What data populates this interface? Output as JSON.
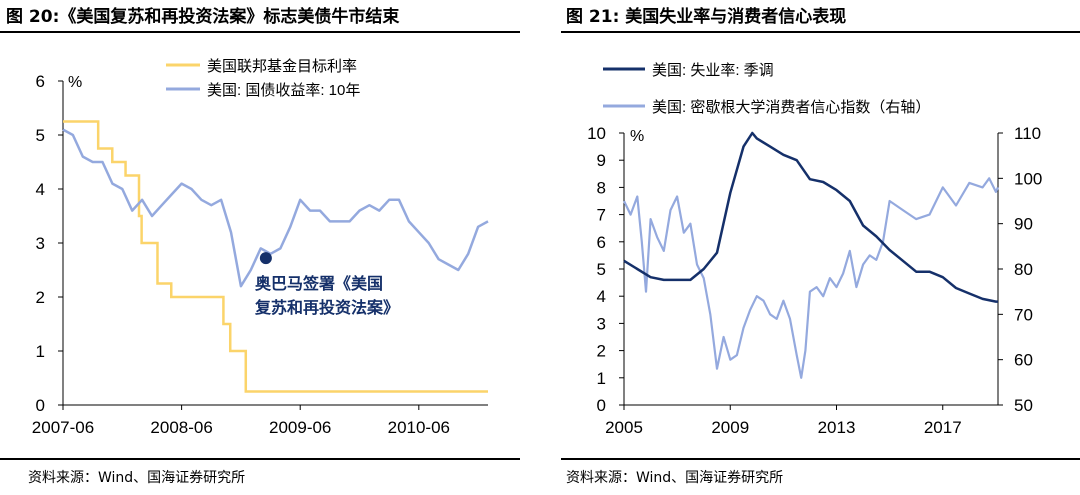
{
  "left_panel": {
    "title": "图 20:《美国复苏和再投资法案》标志美债牛市结束",
    "source": "资料来源：Wind、国海证券研究所"
  },
  "right_panel": {
    "title": "图 21: 美国失业率与消费者信心表现",
    "source": "资料来源：Wind、国海证券研究所"
  },
  "chart_data": [
    {
      "type": "line",
      "title": "",
      "y_unit": "%",
      "ylim": [
        0,
        6
      ],
      "yticks": [
        "0",
        "1",
        "2",
        "3",
        "4",
        "5",
        "6"
      ],
      "xlim": [
        "2007-06",
        "2011-01"
      ],
      "xticks": [
        "2007-06",
        "2008-06",
        "2009-06",
        "2010-06"
      ],
      "legend": [
        "美国联邦基金目标利率",
        "美国: 国债收益率: 10年"
      ],
      "colors": [
        "#FBD46A",
        "#94A9DE"
      ],
      "series": [
        {
          "name": "美国联邦基金目标利率",
          "step": true,
          "x": [
            "2007-06",
            "2007-09-18",
            "2007-10-31",
            "2007-12-11",
            "2008-01-22",
            "2008-01-30",
            "2008-03-18",
            "2008-04-30",
            "2008-10-08",
            "2008-10-29",
            "2008-12-16",
            "2011-01"
          ],
          "values": [
            5.25,
            4.75,
            4.5,
            4.25,
            3.5,
            3.0,
            2.25,
            2.0,
            1.5,
            1.0,
            0.25,
            0.25
          ]
        },
        {
          "name": "美国: 国债收益率: 10年",
          "x": [
            "2007-06",
            "2007-07",
            "2007-08",
            "2007-09",
            "2007-10",
            "2007-11",
            "2007-12",
            "2008-01",
            "2008-02",
            "2008-03",
            "2008-04",
            "2008-05",
            "2008-06",
            "2008-07",
            "2008-08",
            "2008-09",
            "2008-10",
            "2008-11",
            "2008-12",
            "2009-01",
            "2009-02",
            "2009-03",
            "2009-04",
            "2009-05",
            "2009-06",
            "2009-07",
            "2009-08",
            "2009-09",
            "2009-10",
            "2009-11",
            "2009-12",
            "2010-01",
            "2010-02",
            "2010-03",
            "2010-04",
            "2010-05",
            "2010-06",
            "2010-07",
            "2010-08",
            "2010-09",
            "2010-10",
            "2010-11",
            "2010-12",
            "2011-01"
          ],
          "values": [
            5.1,
            5.0,
            4.6,
            4.5,
            4.5,
            4.1,
            4.0,
            3.6,
            3.8,
            3.5,
            3.7,
            3.9,
            4.1,
            4.0,
            3.8,
            3.7,
            3.8,
            3.2,
            2.2,
            2.5,
            2.9,
            2.8,
            2.9,
            3.3,
            3.8,
            3.6,
            3.6,
            3.4,
            3.4,
            3.4,
            3.6,
            3.7,
            3.6,
            3.8,
            3.8,
            3.4,
            3.2,
            3.0,
            2.7,
            2.6,
            2.5,
            2.8,
            3.3,
            3.4
          ]
        }
      ],
      "annotations": [
        {
          "text_lines": [
            "奥巴马签署《美国",
            "复苏和再投资法案》"
          ],
          "x": "2009-02-17",
          "y": 2.72
        }
      ]
    },
    {
      "type": "line",
      "title": "",
      "y_unit": "%",
      "ylim": [
        0,
        10
      ],
      "yticks": [
        "0",
        "1",
        "2",
        "3",
        "4",
        "5",
        "6",
        "7",
        "8",
        "9",
        "10"
      ],
      "y2lim": [
        50,
        110
      ],
      "y2ticks": [
        "50",
        "60",
        "70",
        "80",
        "90",
        "100",
        "110"
      ],
      "xlim": [
        2005,
        2019.08
      ],
      "xticks": [
        "2005",
        "2009",
        "2013",
        "2017"
      ],
      "legend": [
        "美国: 失业率: 季调",
        "美国: 密歇根大学消费者信心指数（右轴）"
      ],
      "colors": [
        "#15306A",
        "#94A9DE"
      ],
      "series": [
        {
          "name": "美国: 失业率: 季调",
          "axis": "left",
          "x": [
            2005.0,
            2005.5,
            2006.0,
            2006.5,
            2007.0,
            2007.5,
            2008.0,
            2008.5,
            2009.0,
            2009.5,
            2009.83,
            2010.0,
            2010.5,
            2011.0,
            2011.5,
            2012.0,
            2012.5,
            2013.0,
            2013.5,
            2014.0,
            2014.5,
            2015.0,
            2015.5,
            2016.0,
            2016.5,
            2017.0,
            2017.5,
            2018.0,
            2018.5,
            2019.0,
            2019.08
          ],
          "values": [
            5.3,
            5.0,
            4.7,
            4.6,
            4.6,
            4.6,
            5.0,
            5.6,
            7.8,
            9.5,
            10.0,
            9.8,
            9.5,
            9.2,
            9.0,
            8.3,
            8.2,
            7.9,
            7.5,
            6.6,
            6.2,
            5.7,
            5.3,
            4.9,
            4.9,
            4.7,
            4.3,
            4.1,
            3.9,
            3.8,
            3.8
          ]
        },
        {
          "name": "美国: 密歇根大学消费者信心指数（右轴）",
          "axis": "right",
          "x": [
            2005.0,
            2005.25,
            2005.5,
            2005.67,
            2005.83,
            2006.0,
            2006.25,
            2006.5,
            2006.75,
            2007.0,
            2007.25,
            2007.5,
            2007.75,
            2008.0,
            2008.25,
            2008.5,
            2008.75,
            2009.0,
            2009.25,
            2009.5,
            2009.75,
            2010.0,
            2010.25,
            2010.5,
            2010.75,
            2011.0,
            2011.25,
            2011.5,
            2011.67,
            2011.83,
            2012.0,
            2012.25,
            2012.5,
            2012.75,
            2013.0,
            2013.25,
            2013.5,
            2013.75,
            2014.0,
            2014.25,
            2014.5,
            2014.75,
            2015.0,
            2015.5,
            2016.0,
            2016.5,
            2017.0,
            2017.5,
            2018.0,
            2018.5,
            2018.75,
            2019.0,
            2019.08
          ],
          "values": [
            95,
            92,
            96,
            86,
            75,
            91,
            87,
            84,
            93,
            96,
            88,
            90,
            81,
            78,
            70,
            58,
            65,
            60,
            61,
            67,
            71,
            74,
            73,
            70,
            69,
            73,
            69,
            61,
            56,
            62,
            75,
            76,
            74,
            78,
            76,
            79,
            84,
            76,
            81,
            83,
            82,
            86,
            95,
            93,
            91,
            92,
            98,
            94,
            99,
            98,
            100,
            97,
            98
          ]
        }
      ]
    }
  ]
}
